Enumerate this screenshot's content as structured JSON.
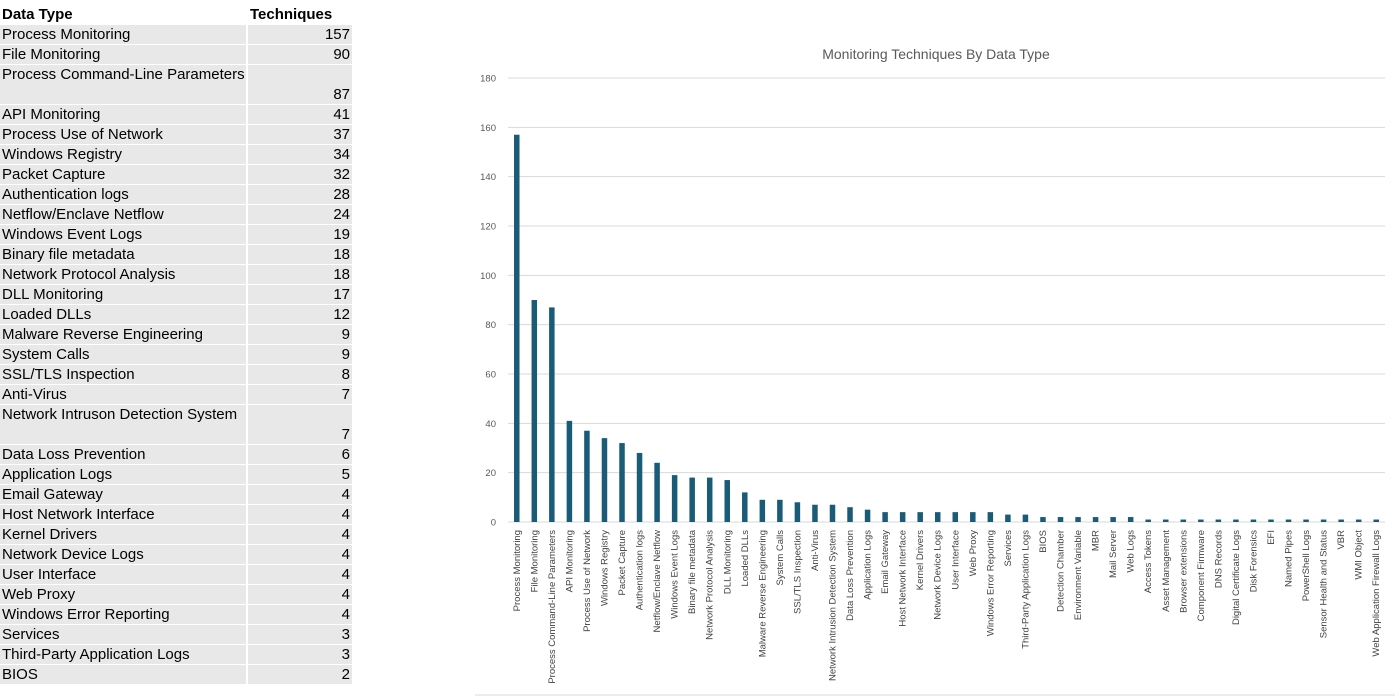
{
  "table": {
    "header": {
      "col1": "Data Type",
      "col2": "Techniques"
    },
    "rows": [
      {
        "label": "Process Monitoring",
        "value": "157"
      },
      {
        "label": "File Monitoring",
        "value": "90"
      },
      {
        "label": "Process Command-Line Parameters",
        "value": "87",
        "wrap": true
      },
      {
        "label": "API Monitoring",
        "value": "41"
      },
      {
        "label": "Process Use of Network",
        "value": "37"
      },
      {
        "label": "Windows Registry",
        "value": "34"
      },
      {
        "label": "Packet Capture",
        "value": "32"
      },
      {
        "label": "Authentication logs",
        "value": "28"
      },
      {
        "label": "Netflow/Enclave Netflow",
        "value": "24"
      },
      {
        "label": "Windows Event Logs",
        "value": "19"
      },
      {
        "label": "Binary file metadata",
        "value": "18"
      },
      {
        "label": "Network Protocol Analysis",
        "value": "18"
      },
      {
        "label": "DLL Monitoring",
        "value": "17"
      },
      {
        "label": "Loaded DLLs",
        "value": "12"
      },
      {
        "label": "Malware Reverse Engineering",
        "value": "9"
      },
      {
        "label": "System Calls",
        "value": "9"
      },
      {
        "label": "SSL/TLS Inspection",
        "value": "8"
      },
      {
        "label": "Anti-Virus",
        "value": "7"
      },
      {
        "label": "Network Intruson Detection System",
        "value": "7",
        "wrap": true
      },
      {
        "label": "Data Loss Prevention",
        "value": "6"
      },
      {
        "label": "Application Logs",
        "value": "5"
      },
      {
        "label": "Email Gateway",
        "value": "4"
      },
      {
        "label": "Host Network Interface",
        "value": "4"
      },
      {
        "label": "Kernel Drivers",
        "value": "4"
      },
      {
        "label": "Network Device Logs",
        "value": "4"
      },
      {
        "label": "User Interface",
        "value": "4"
      },
      {
        "label": "Web Proxy",
        "value": "4"
      },
      {
        "label": "Windows Error Reporting",
        "value": "4"
      },
      {
        "label": "Services",
        "value": "3"
      },
      {
        "label": "Third-Party Application Logs",
        "value": "3"
      },
      {
        "label": "BIOS",
        "value": "2"
      }
    ]
  },
  "chart_data": {
    "type": "bar",
    "title": "Monitoring Techniques By Data Type",
    "xlabel": "",
    "ylabel": "",
    "ylim": [
      0,
      180
    ],
    "yticks": [
      0,
      20,
      40,
      60,
      80,
      100,
      120,
      140,
      160,
      180
    ],
    "grid": true,
    "color": "#1a5b78",
    "categories": [
      "Process Monitoring",
      "File Monitoring",
      "Process Command-Line Parameters",
      "API Monitoring",
      "Process Use of Network",
      "Windows Registry",
      "Packet Capture",
      "Authentication logs",
      "Netflow/Enclave Netflow",
      "Windows Event Logs",
      "Binary file metadata",
      "Network Protocol Analysis",
      "DLL Monitoring",
      "Loaded DLLs",
      "Malware Reverse Engineering",
      "System Calls",
      "SSL/TLS Inspection",
      "Anti-Virus",
      "Network Intrusion Detection System",
      "Data Loss Prevention",
      "Application Logs",
      "Email Gateway",
      "Host Network Interface",
      "Kernel Drivers",
      "Network Device Logs",
      "User Interface",
      "Web Proxy",
      "Windows Error Reporting",
      "Services",
      "Third-Party Application Logs",
      "BIOS",
      "Detection Chamber",
      "Environment Variable",
      "MBR",
      "Mail Server",
      "Web Logs",
      "Access Tokens",
      "Asset Management",
      "Browser extensions",
      "Component Firmware",
      "DNS Records",
      "Digital Certificate Logs",
      "Disk Forensics",
      "EFI",
      "Named Pipes",
      "PowerShell Logs",
      "Sensor Health and Status",
      "VBR",
      "WMI Object",
      "Web Application Firewall Logs"
    ],
    "values": [
      157,
      90,
      87,
      41,
      37,
      34,
      32,
      28,
      24,
      19,
      18,
      18,
      17,
      12,
      9,
      9,
      8,
      7,
      7,
      6,
      5,
      4,
      4,
      4,
      4,
      4,
      4,
      4,
      3,
      3,
      2,
      2,
      2,
      2,
      2,
      2,
      1,
      1,
      1,
      1,
      1,
      1,
      1,
      1,
      1,
      1,
      1,
      1,
      1,
      1
    ]
  }
}
